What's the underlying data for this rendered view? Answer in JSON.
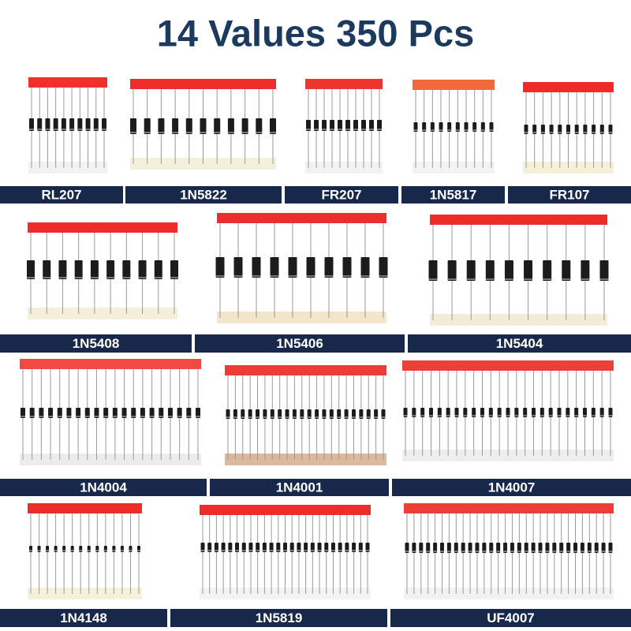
{
  "title": "14 Values 350 Pcs",
  "rows": [
    [
      "RL207",
      "1N5822",
      "FR207",
      "1N5817",
      "FR107"
    ],
    [
      "1N5408",
      "1N5406",
      "1N5404"
    ],
    [
      "1N4004",
      "1N4001",
      "1N4007"
    ],
    [
      "1N4148",
      "1N5819",
      "UF4007"
    ]
  ]
}
